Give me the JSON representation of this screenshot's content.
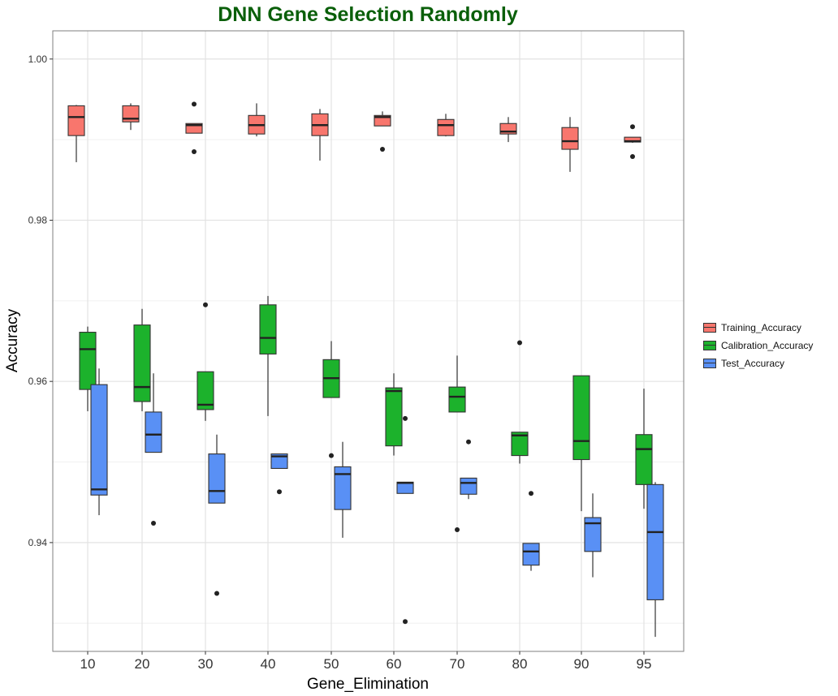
{
  "chart_data": {
    "type": "boxplot",
    "title": "DNN Gene Selection Randomly",
    "xlabel": "Gene_Elimination",
    "ylabel": "Accuracy",
    "categories": [
      "10",
      "20",
      "30",
      "40",
      "50",
      "60",
      "70",
      "80",
      "90",
      "95"
    ],
    "ylim": [
      0.9265,
      1.0035
    ],
    "yticks": [
      0.94,
      0.96,
      0.98,
      1.0
    ],
    "ytick_labels": [
      "0.94",
      "0.96",
      "0.98",
      "1.00"
    ],
    "grid": true,
    "legend_position": "right",
    "series": [
      {
        "name": "Training_Accuracy",
        "color": "#f8766d",
        "boxes": [
          {
            "min": 0.9872,
            "q1": 0.9905,
            "median": 0.9928,
            "q3": 0.9942,
            "max": 0.9943,
            "outliers": []
          },
          {
            "min": 0.9912,
            "q1": 0.9922,
            "median": 0.9926,
            "q3": 0.9942,
            "max": 0.9945,
            "outliers": []
          },
          {
            "min": 0.9908,
            "q1": 0.9908,
            "median": 0.9918,
            "q3": 0.992,
            "max": 0.992,
            "outliers": [
              0.9944,
              0.9885
            ]
          },
          {
            "min": 0.9904,
            "q1": 0.9907,
            "median": 0.9918,
            "q3": 0.993,
            "max": 0.9945,
            "outliers": []
          },
          {
            "min": 0.9874,
            "q1": 0.9905,
            "median": 0.9918,
            "q3": 0.9932,
            "max": 0.9938,
            "outliers": []
          },
          {
            "min": 0.9917,
            "q1": 0.9917,
            "median": 0.9928,
            "q3": 0.993,
            "max": 0.9935,
            "outliers": [
              0.9888
            ]
          },
          {
            "min": 0.9904,
            "q1": 0.9905,
            "median": 0.9918,
            "q3": 0.9925,
            "max": 0.9932,
            "outliers": []
          },
          {
            "min": 0.9897,
            "q1": 0.9907,
            "median": 0.991,
            "q3": 0.992,
            "max": 0.9928,
            "outliers": []
          },
          {
            "min": 0.986,
            "q1": 0.9888,
            "median": 0.9898,
            "q3": 0.9915,
            "max": 0.9928,
            "outliers": []
          },
          {
            "min": 0.9896,
            "q1": 0.9897,
            "median": 0.9898,
            "q3": 0.9903,
            "max": 0.9903,
            "outliers": [
              0.9916,
              0.9879
            ]
          }
        ]
      },
      {
        "name": "Calibration_Accuracy",
        "color": "#1cb22c",
        "boxes": [
          {
            "min": 0.9563,
            "q1": 0.959,
            "median": 0.964,
            "q3": 0.9661,
            "max": 0.9668,
            "outliers": []
          },
          {
            "min": 0.9563,
            "q1": 0.9575,
            "median": 0.9593,
            "q3": 0.967,
            "max": 0.969,
            "outliers": []
          },
          {
            "min": 0.9551,
            "q1": 0.9565,
            "median": 0.9571,
            "q3": 0.9612,
            "max": 0.9612,
            "outliers": [
              0.9695
            ]
          },
          {
            "min": 0.9557,
            "q1": 0.9634,
            "median": 0.9654,
            "q3": 0.9695,
            "max": 0.9706,
            "outliers": []
          },
          {
            "min": 0.958,
            "q1": 0.958,
            "median": 0.9604,
            "q3": 0.9627,
            "max": 0.965,
            "outliers": [
              0.9508
            ]
          },
          {
            "min": 0.9508,
            "q1": 0.952,
            "median": 0.9588,
            "q3": 0.9592,
            "max": 0.961,
            "outliers": []
          },
          {
            "min": 0.9562,
            "q1": 0.9562,
            "median": 0.9581,
            "q3": 0.9593,
            "max": 0.9632,
            "outliers": [
              0.9416
            ]
          },
          {
            "min": 0.9498,
            "q1": 0.9508,
            "median": 0.9533,
            "q3": 0.9537,
            "max": 0.9537,
            "outliers": [
              0.9648
            ]
          },
          {
            "min": 0.9439,
            "q1": 0.9503,
            "median": 0.9526,
            "q3": 0.9607,
            "max": 0.9607,
            "outliers": []
          },
          {
            "min": 0.9442,
            "q1": 0.9472,
            "median": 0.9516,
            "q3": 0.9534,
            "max": 0.9591,
            "outliers": []
          }
        ]
      },
      {
        "name": "Test_Accuracy",
        "color": "#5990f5",
        "boxes": [
          {
            "min": 0.9434,
            "q1": 0.9459,
            "median": 0.9466,
            "q3": 0.9596,
            "max": 0.9616,
            "outliers": []
          },
          {
            "min": 0.9512,
            "q1": 0.9512,
            "median": 0.9534,
            "q3": 0.9562,
            "max": 0.961,
            "outliers": [
              0.9424
            ]
          },
          {
            "min": 0.9449,
            "q1": 0.9449,
            "median": 0.9464,
            "q3": 0.951,
            "max": 0.9534,
            "outliers": [
              0.9337
            ]
          },
          {
            "min": 0.9492,
            "q1": 0.9492,
            "median": 0.9507,
            "q3": 0.951,
            "max": 0.951,
            "outliers": [
              0.9463
            ]
          },
          {
            "min": 0.9406,
            "q1": 0.9441,
            "median": 0.9485,
            "q3": 0.9494,
            "max": 0.9525,
            "outliers": []
          },
          {
            "min": 0.9461,
            "q1": 0.9461,
            "median": 0.9474,
            "q3": 0.9475,
            "max": 0.9475,
            "outliers": [
              0.9554,
              0.9302
            ]
          },
          {
            "min": 0.9454,
            "q1": 0.946,
            "median": 0.9474,
            "q3": 0.948,
            "max": 0.948,
            "outliers": [
              0.9525
            ]
          },
          {
            "min": 0.9365,
            "q1": 0.9372,
            "median": 0.9389,
            "q3": 0.9399,
            "max": 0.9399,
            "outliers": [
              0.9461
            ]
          },
          {
            "min": 0.9357,
            "q1": 0.9389,
            "median": 0.9424,
            "q3": 0.9431,
            "max": 0.9461,
            "outliers": []
          },
          {
            "min": 0.9283,
            "q1": 0.9329,
            "median": 0.9413,
            "q3": 0.9472,
            "max": 0.9475,
            "outliers": []
          }
        ]
      }
    ]
  }
}
